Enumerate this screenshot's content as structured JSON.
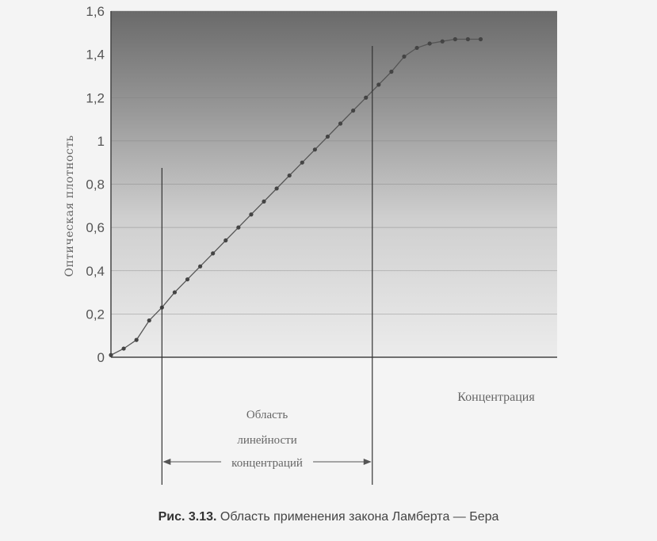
{
  "chart_data": {
    "type": "line",
    "title": "",
    "xlabel": "Концентрация",
    "ylabel": "Оптическая плотность",
    "ylim": [
      0,
      1.6
    ],
    "yticks": [
      "0",
      "0,2",
      "0,4",
      "0,6",
      "0,8",
      "1",
      "1,2",
      "1,4",
      "1,6"
    ],
    "ytick_values": [
      0,
      0.2,
      0.4,
      0.6,
      0.8,
      1.0,
      1.2,
      1.4,
      1.6
    ],
    "xlim": [
      0,
      35
    ],
    "grid": true,
    "series": [
      {
        "x": [
          0,
          1,
          2,
          3,
          4,
          5,
          6,
          7,
          8,
          9,
          10,
          11,
          12,
          13,
          14,
          15,
          16,
          17,
          18,
          19,
          20,
          21,
          22,
          23,
          24,
          25,
          26,
          27,
          28,
          29
        ],
        "values": [
          0.01,
          0.04,
          0.08,
          0.17,
          0.23,
          0.3,
          0.36,
          0.42,
          0.48,
          0.54,
          0.6,
          0.66,
          0.72,
          0.78,
          0.84,
          0.9,
          0.96,
          1.02,
          1.08,
          1.14,
          1.2,
          1.26,
          1.32,
          1.39,
          1.43,
          1.45,
          1.46,
          1.47,
          1.47,
          1.47
        ]
      }
    ],
    "linear_region": {
      "x_start": 4,
      "x_end": 20.5,
      "label_lines": [
        "Область",
        "линейности",
        "концентраций"
      ]
    }
  },
  "caption": {
    "prefix": "Рис. 3.13.",
    "text": " Область применения закона Ламберта — Бера"
  }
}
